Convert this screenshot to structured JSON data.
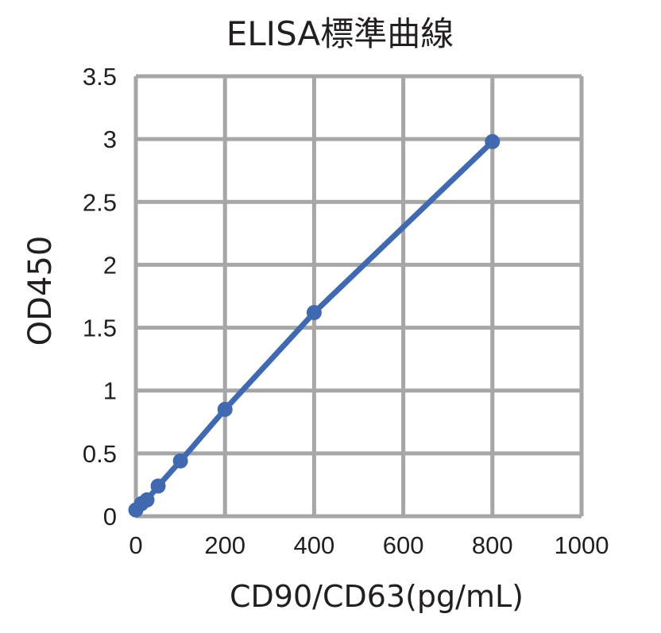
{
  "chart_data": {
    "type": "line",
    "title": "ELISA標準曲線",
    "xlabel": "CD90/CD63(pg/mL)",
    "ylabel": "OD450",
    "xlim": [
      0,
      1000
    ],
    "ylim": [
      0,
      3.5
    ],
    "x_ticks": [
      "0",
      "200",
      "400",
      "600",
      "800",
      "1000"
    ],
    "y_ticks": [
      "0",
      "0.5",
      "1",
      "1.5",
      "2",
      "2.5",
      "3",
      "3.5"
    ],
    "x_tick_values": [
      0,
      200,
      400,
      600,
      800,
      1000
    ],
    "y_tick_values": [
      0,
      0.5,
      1,
      1.5,
      2,
      2.5,
      3,
      3.5
    ],
    "grid": true,
    "series": [
      {
        "x": [
          0,
          12.5,
          25,
          50,
          100,
          200,
          400,
          800
        ],
        "y": [
          0.05,
          0.1,
          0.13,
          0.24,
          0.44,
          0.85,
          1.62,
          2.98
        ]
      }
    ],
    "colors": {
      "line": "#4169b0",
      "grid": "#a6a6a6",
      "text": "#231f20"
    }
  }
}
